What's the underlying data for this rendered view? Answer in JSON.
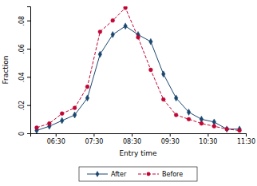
{
  "chart_data": {
    "type": "line",
    "x_label": "Entry time",
    "y_label": "Fraction",
    "x": [
      360,
      380,
      400,
      420,
      440,
      460,
      480,
      500,
      520,
      540,
      560,
      580,
      600,
      620,
      640,
      660,
      680
    ],
    "xlim": [
      350,
      690
    ],
    "xticks": [
      {
        "value": 390,
        "label": "06:30"
      },
      {
        "value": 450,
        "label": "07:30"
      },
      {
        "value": 510,
        "label": "08:30"
      },
      {
        "value": 570,
        "label": "09:30"
      },
      {
        "value": 630,
        "label": "10:30"
      },
      {
        "value": 690,
        "label": "11:30"
      }
    ],
    "ylim": [
      0,
      0.09
    ],
    "yticks": [
      0,
      {
        "value": 0.02,
        "label": ".02"
      },
      {
        "value": 0.04,
        "label": ".04"
      },
      {
        "value": 0.06,
        "label": ".06"
      },
      {
        "value": 0.08,
        "label": ".08"
      }
    ],
    "grid": false,
    "legend": "bottom",
    "series": [
      {
        "name": "After",
        "color": "#1a476f",
        "marker": "diamond",
        "line_style": "solid",
        "values": [
          0.002,
          0.005,
          0.009,
          0.013,
          0.025,
          0.056,
          0.07,
          0.076,
          0.07,
          0.065,
          0.042,
          0.025,
          0.015,
          0.01,
          0.008,
          0.003,
          0.003
        ]
      },
      {
        "name": "Before",
        "color": "#c10534",
        "marker": "circle",
        "line_style": "dashed",
        "values": [
          0.004,
          0.007,
          0.014,
          0.018,
          0.033,
          0.072,
          0.08,
          0.089,
          0.068,
          0.045,
          0.024,
          0.013,
          0.01,
          0.007,
          0.005,
          0.003,
          0.002
        ]
      }
    ]
  }
}
